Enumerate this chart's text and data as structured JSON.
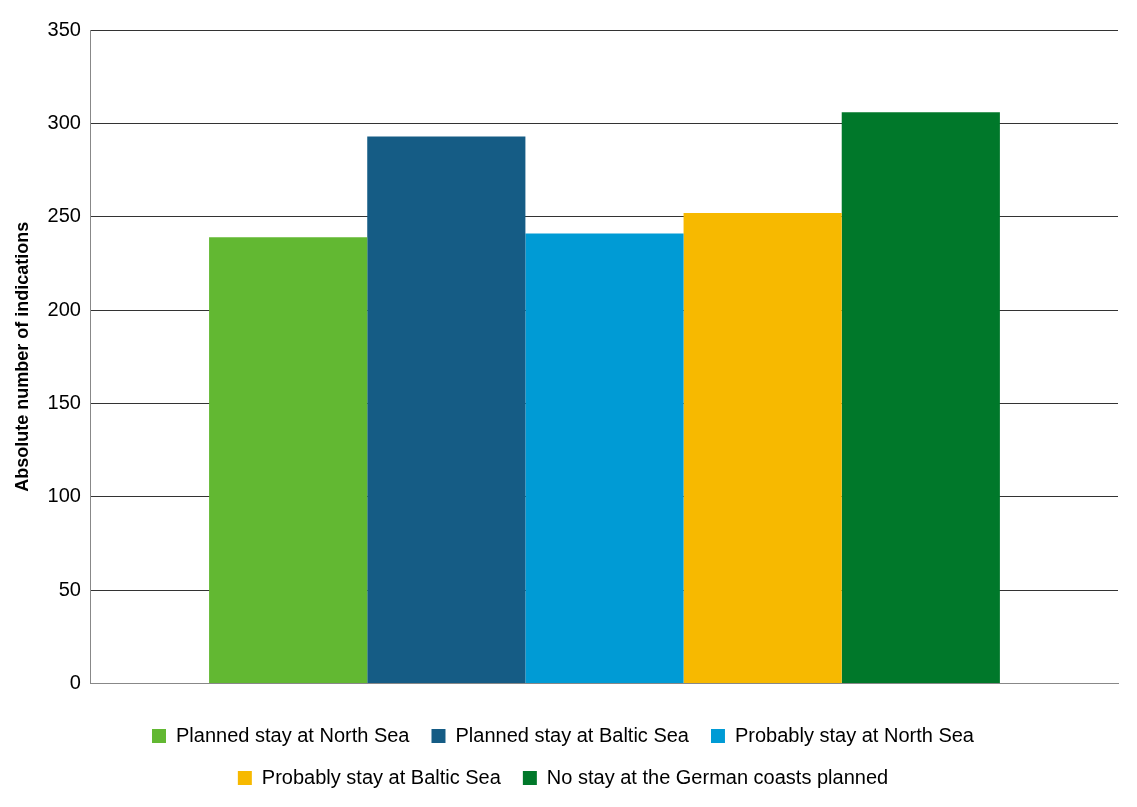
{
  "chart_data": {
    "type": "bar",
    "ylabel": "Absolute number of indications",
    "categories": [
      null
    ],
    "series": [
      {
        "name": "Planned stay at North Sea",
        "color": "#62b832",
        "values": [
          239
        ]
      },
      {
        "name": "Planned stay at Baltic Sea",
        "color": "#155c85",
        "values": [
          293
        ]
      },
      {
        "name": "Probably stay at North Sea",
        "color": "#009bd5",
        "values": [
          241
        ]
      },
      {
        "name": "Probably stay at Baltic Sea",
        "color": "#f7b900",
        "values": [
          252
        ]
      },
      {
        "name": "No stay at the German coasts planned",
        "color": "#00782a",
        "values": [
          306
        ]
      }
    ],
    "ylim": [
      0,
      350
    ],
    "yticks": [
      0,
      50,
      100,
      150,
      200,
      250,
      300,
      350
    ],
    "grid": "y",
    "legend": "bottom"
  }
}
